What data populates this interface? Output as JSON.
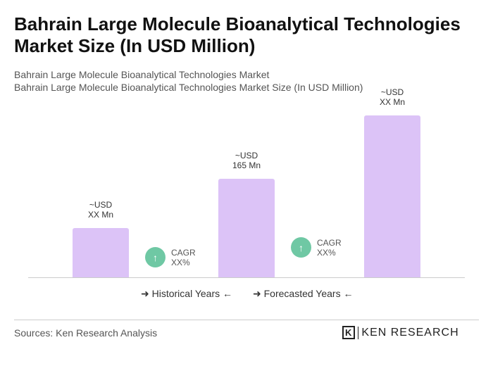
{
  "title": "Bahrain Large Molecule Bioanalytical Technologies Market Size (In USD Million)",
  "subtitle1": "Bahrain Large Molecule Bioanalytical Technologies Market",
  "subtitle2": "Bahrain Large Molecule Bioanalytical Technologies Market Size (In USD Million)",
  "chart_data": {
    "type": "bar",
    "categories": [
      "",
      "",
      ""
    ],
    "values": [
      82,
      165,
      271
    ],
    "data_labels": [
      [
        "~USD",
        "XX Mn"
      ],
      [
        "~USD",
        "165 Mn"
      ],
      [
        "~USD",
        "XX Mn"
      ]
    ],
    "bar_color": "#dcc3f7",
    "cagr": [
      {
        "label": "CAGR",
        "value": "XX%"
      },
      {
        "label": "CAGR",
        "value": "XX%"
      }
    ],
    "legend": [
      "Historical Years",
      "Forecasted Years"
    ],
    "grid": false
  },
  "sources": "Sources: Ken Research Analysis",
  "logo": "KEN RESEARCH"
}
